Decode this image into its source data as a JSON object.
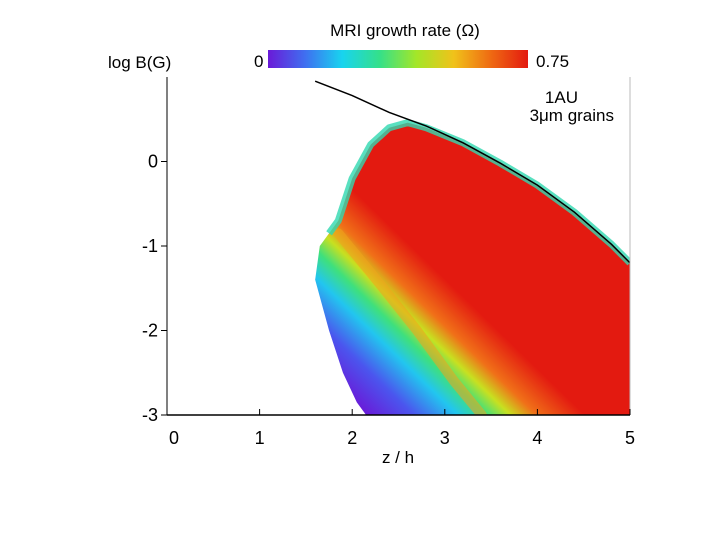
{
  "chart_data": {
    "type": "heatmap",
    "title": "MRI growth rate (Ω)",
    "xlabel": "z / h",
    "ylabel": "log B(G)",
    "xlim": [
      0,
      5
    ],
    "ylim": [
      -3,
      1
    ],
    "x_ticks": [
      "0",
      "1",
      "2",
      "3",
      "4",
      "5"
    ],
    "y_ticks": [
      "0",
      "-1",
      "-2",
      "-3"
    ],
    "y_tick_values": [
      0,
      -1,
      -2,
      -3
    ],
    "colorbar": {
      "min_label": "0",
      "max_label": "0.75",
      "min": 0,
      "max": 0.75,
      "colors": [
        "#6a1ad8",
        "#3f6ff0",
        "#18d4ef",
        "#34e08a",
        "#a4e628",
        "#f0c21a",
        "#ef6a12",
        "#e31a10"
      ]
    },
    "annotations": [
      "1AU",
      "3μm grains"
    ],
    "boundary_curve": {
      "x": [
        1.6,
        2.0,
        2.4,
        2.8,
        3.2,
        3.6,
        4.0,
        4.4,
        4.8,
        5.0
      ],
      "y": [
        0.95,
        0.78,
        0.58,
        0.42,
        0.22,
        -0.02,
        -0.28,
        -0.6,
        -0.98,
        -1.2
      ]
    },
    "lower_curve_y": -3,
    "region": {
      "upper_edge": {
        "x": [
          1.6,
          1.65,
          1.75,
          1.85,
          2.0,
          2.2,
          2.4,
          2.6,
          2.8,
          3.2,
          3.6,
          4.0,
          4.4,
          4.8,
          5.0
        ],
        "y": [
          -1.4,
          -1.0,
          -0.85,
          -0.7,
          -0.2,
          0.2,
          0.4,
          0.46,
          0.4,
          0.22,
          -0.02,
          -0.28,
          -0.6,
          -0.98,
          -1.2
        ]
      },
      "lower_edge": {
        "x": [
          1.6,
          1.75,
          1.9,
          2.05,
          2.15
        ],
        "y": [
          -1.4,
          -2.0,
          -2.5,
          -2.85,
          -3.0
        ]
      }
    },
    "ridge": {
      "x": [
        1.85,
        2.3,
        2.7,
        3.1,
        3.4
      ],
      "y": [
        -0.85,
        -1.45,
        -2.0,
        -2.6,
        -3.0
      ]
    }
  }
}
